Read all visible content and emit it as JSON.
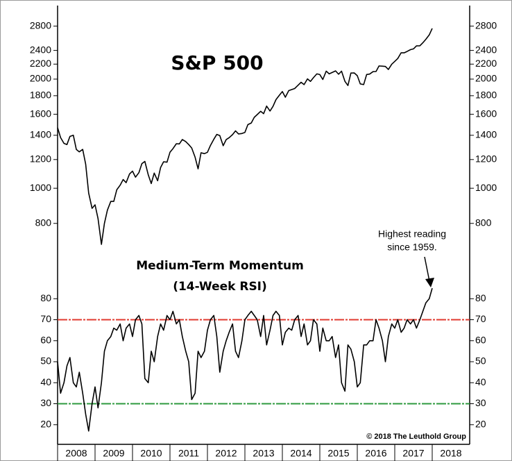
{
  "chart_data": [
    {
      "type": "line",
      "title": "S&P 500",
      "log_scale": true,
      "color": "#000000",
      "xlim": [
        2008,
        2019
      ],
      "ylim": [
        600,
        3000
      ],
      "yticks": [
        800,
        1000,
        1200,
        1400,
        1600,
        1800,
        2000,
        2200,
        2400,
        2800
      ],
      "x": [
        2008.0,
        2008.08,
        2008.17,
        2008.25,
        2008.33,
        2008.42,
        2008.5,
        2008.58,
        2008.67,
        2008.75,
        2008.83,
        2008.92,
        2009.0,
        2009.08,
        2009.17,
        2009.25,
        2009.33,
        2009.42,
        2009.5,
        2009.58,
        2009.67,
        2009.75,
        2009.83,
        2009.92,
        2010.0,
        2010.08,
        2010.17,
        2010.25,
        2010.33,
        2010.42,
        2010.5,
        2010.58,
        2010.67,
        2010.75,
        2010.83,
        2010.92,
        2011.0,
        2011.08,
        2011.17,
        2011.25,
        2011.33,
        2011.42,
        2011.5,
        2011.58,
        2011.67,
        2011.75,
        2011.83,
        2011.92,
        2012.0,
        2012.08,
        2012.17,
        2012.25,
        2012.33,
        2012.42,
        2012.5,
        2012.58,
        2012.67,
        2012.75,
        2012.83,
        2012.92,
        2013.0,
        2013.08,
        2013.17,
        2013.25,
        2013.33,
        2013.42,
        2013.5,
        2013.58,
        2013.67,
        2013.75,
        2013.83,
        2013.92,
        2014.0,
        2014.08,
        2014.17,
        2014.25,
        2014.33,
        2014.42,
        2014.5,
        2014.58,
        2014.67,
        2014.75,
        2014.83,
        2014.92,
        2015.0,
        2015.08,
        2015.17,
        2015.25,
        2015.33,
        2015.42,
        2015.5,
        2015.58,
        2015.67,
        2015.75,
        2015.83,
        2015.92,
        2016.0,
        2016.08,
        2016.17,
        2016.25,
        2016.33,
        2016.42,
        2016.5,
        2016.58,
        2016.67,
        2016.75,
        2016.83,
        2016.92,
        2017.0,
        2017.08,
        2017.17,
        2017.25,
        2017.33,
        2017.42,
        2017.5,
        2017.58,
        2017.67,
        2017.75,
        2017.83,
        2017.92,
        2018.0
      ],
      "values": [
        1470,
        1380,
        1330,
        1320,
        1390,
        1400,
        1280,
        1260,
        1280,
        1165,
        970,
        880,
        900,
        825,
        700,
        800,
        870,
        920,
        920,
        990,
        1020,
        1057,
        1036,
        1095,
        1115,
        1073,
        1104,
        1169,
        1186,
        1089,
        1030,
        1101,
        1049,
        1141,
        1183,
        1180,
        1257,
        1286,
        1327,
        1325,
        1363,
        1345,
        1320,
        1292,
        1218,
        1131,
        1253,
        1246,
        1257,
        1312,
        1365,
        1408,
        1397,
        1310,
        1362,
        1379,
        1406,
        1440,
        1412,
        1416,
        1426,
        1498,
        1514,
        1569,
        1597,
        1630,
        1606,
        1685,
        1633,
        1682,
        1756,
        1806,
        1848,
        1783,
        1859,
        1872,
        1884,
        1924,
        1960,
        1931,
        2003,
        1972,
        2018,
        2068,
        2059,
        1995,
        2104,
        2068,
        2086,
        2107,
        2063,
        2104,
        1972,
        1920,
        2079,
        2080,
        2044,
        1940,
        1932,
        2060,
        2065,
        2097,
        2099,
        2174,
        2171,
        2168,
        2126,
        2199,
        2239,
        2279,
        2364,
        2363,
        2384,
        2412,
        2423,
        2470,
        2472,
        2519,
        2575,
        2648,
        2760
      ],
      "annotations": [
        "Highest reading",
        "since 1959."
      ]
    },
    {
      "type": "line",
      "title": [
        "Medium-Term Momentum",
        "(14-Week RSI)"
      ],
      "color": "#000000",
      "xlim": [
        2008,
        2019
      ],
      "ylim": [
        10,
        90
      ],
      "yticks": [
        20,
        30,
        40,
        50,
        60,
        70,
        80
      ],
      "xticks": [
        2008,
        2009,
        2010,
        2011,
        2012,
        2013,
        2014,
        2015,
        2016,
        2017,
        2018
      ],
      "hlines": [
        {
          "value": 70,
          "color": "#e03a2f"
        },
        {
          "value": 30,
          "color": "#2e9a3e"
        }
      ],
      "x": [
        2008.0,
        2008.08,
        2008.17,
        2008.25,
        2008.33,
        2008.42,
        2008.5,
        2008.58,
        2008.67,
        2008.75,
        2008.83,
        2008.92,
        2009.0,
        2009.08,
        2009.17,
        2009.25,
        2009.33,
        2009.42,
        2009.5,
        2009.58,
        2009.67,
        2009.75,
        2009.83,
        2009.92,
        2010.0,
        2010.08,
        2010.17,
        2010.25,
        2010.33,
        2010.42,
        2010.5,
        2010.58,
        2010.67,
        2010.75,
        2010.83,
        2010.92,
        2011.0,
        2011.08,
        2011.17,
        2011.25,
        2011.33,
        2011.42,
        2011.5,
        2011.58,
        2011.67,
        2011.75,
        2011.83,
        2011.92,
        2012.0,
        2012.08,
        2012.17,
        2012.25,
        2012.33,
        2012.42,
        2012.5,
        2012.58,
        2012.67,
        2012.75,
        2012.83,
        2012.92,
        2013.0,
        2013.08,
        2013.17,
        2013.25,
        2013.33,
        2013.42,
        2013.5,
        2013.58,
        2013.67,
        2013.75,
        2013.83,
        2013.92,
        2014.0,
        2014.08,
        2014.17,
        2014.25,
        2014.33,
        2014.42,
        2014.5,
        2014.58,
        2014.67,
        2014.75,
        2014.83,
        2014.92,
        2015.0,
        2015.08,
        2015.17,
        2015.25,
        2015.33,
        2015.42,
        2015.5,
        2015.58,
        2015.67,
        2015.75,
        2015.83,
        2015.92,
        2016.0,
        2016.08,
        2016.17,
        2016.25,
        2016.33,
        2016.42,
        2016.5,
        2016.58,
        2016.67,
        2016.75,
        2016.83,
        2016.92,
        2017.0,
        2017.08,
        2017.17,
        2017.25,
        2017.33,
        2017.42,
        2017.5,
        2017.58,
        2017.67,
        2017.75,
        2017.83,
        2017.92,
        2018.0
      ],
      "values": [
        50,
        35,
        40,
        48,
        52,
        40,
        38,
        45,
        35,
        25,
        17,
        30,
        38,
        28,
        40,
        55,
        60,
        62,
        66,
        65,
        68,
        60,
        66,
        68,
        62,
        70,
        72,
        68,
        42,
        40,
        55,
        50,
        62,
        68,
        65,
        72,
        70,
        74,
        68,
        70,
        62,
        55,
        50,
        32,
        35,
        55,
        52,
        55,
        65,
        70,
        72,
        62,
        45,
        55,
        60,
        64,
        68,
        55,
        52,
        60,
        70,
        72,
        74,
        72,
        70,
        62,
        72,
        58,
        65,
        72,
        74,
        72,
        58,
        64,
        66,
        65,
        70,
        72,
        62,
        68,
        58,
        60,
        70,
        68,
        55,
        66,
        60,
        60,
        62,
        52,
        58,
        40,
        36,
        58,
        56,
        50,
        38,
        40,
        58,
        58,
        60,
        60,
        70,
        66,
        60,
        50,
        62,
        68,
        66,
        70,
        64,
        66,
        70,
        68,
        70,
        66,
        70,
        74,
        78,
        80,
        85
      ],
      "source": "© 2018 The Leuthold Group"
    }
  ]
}
